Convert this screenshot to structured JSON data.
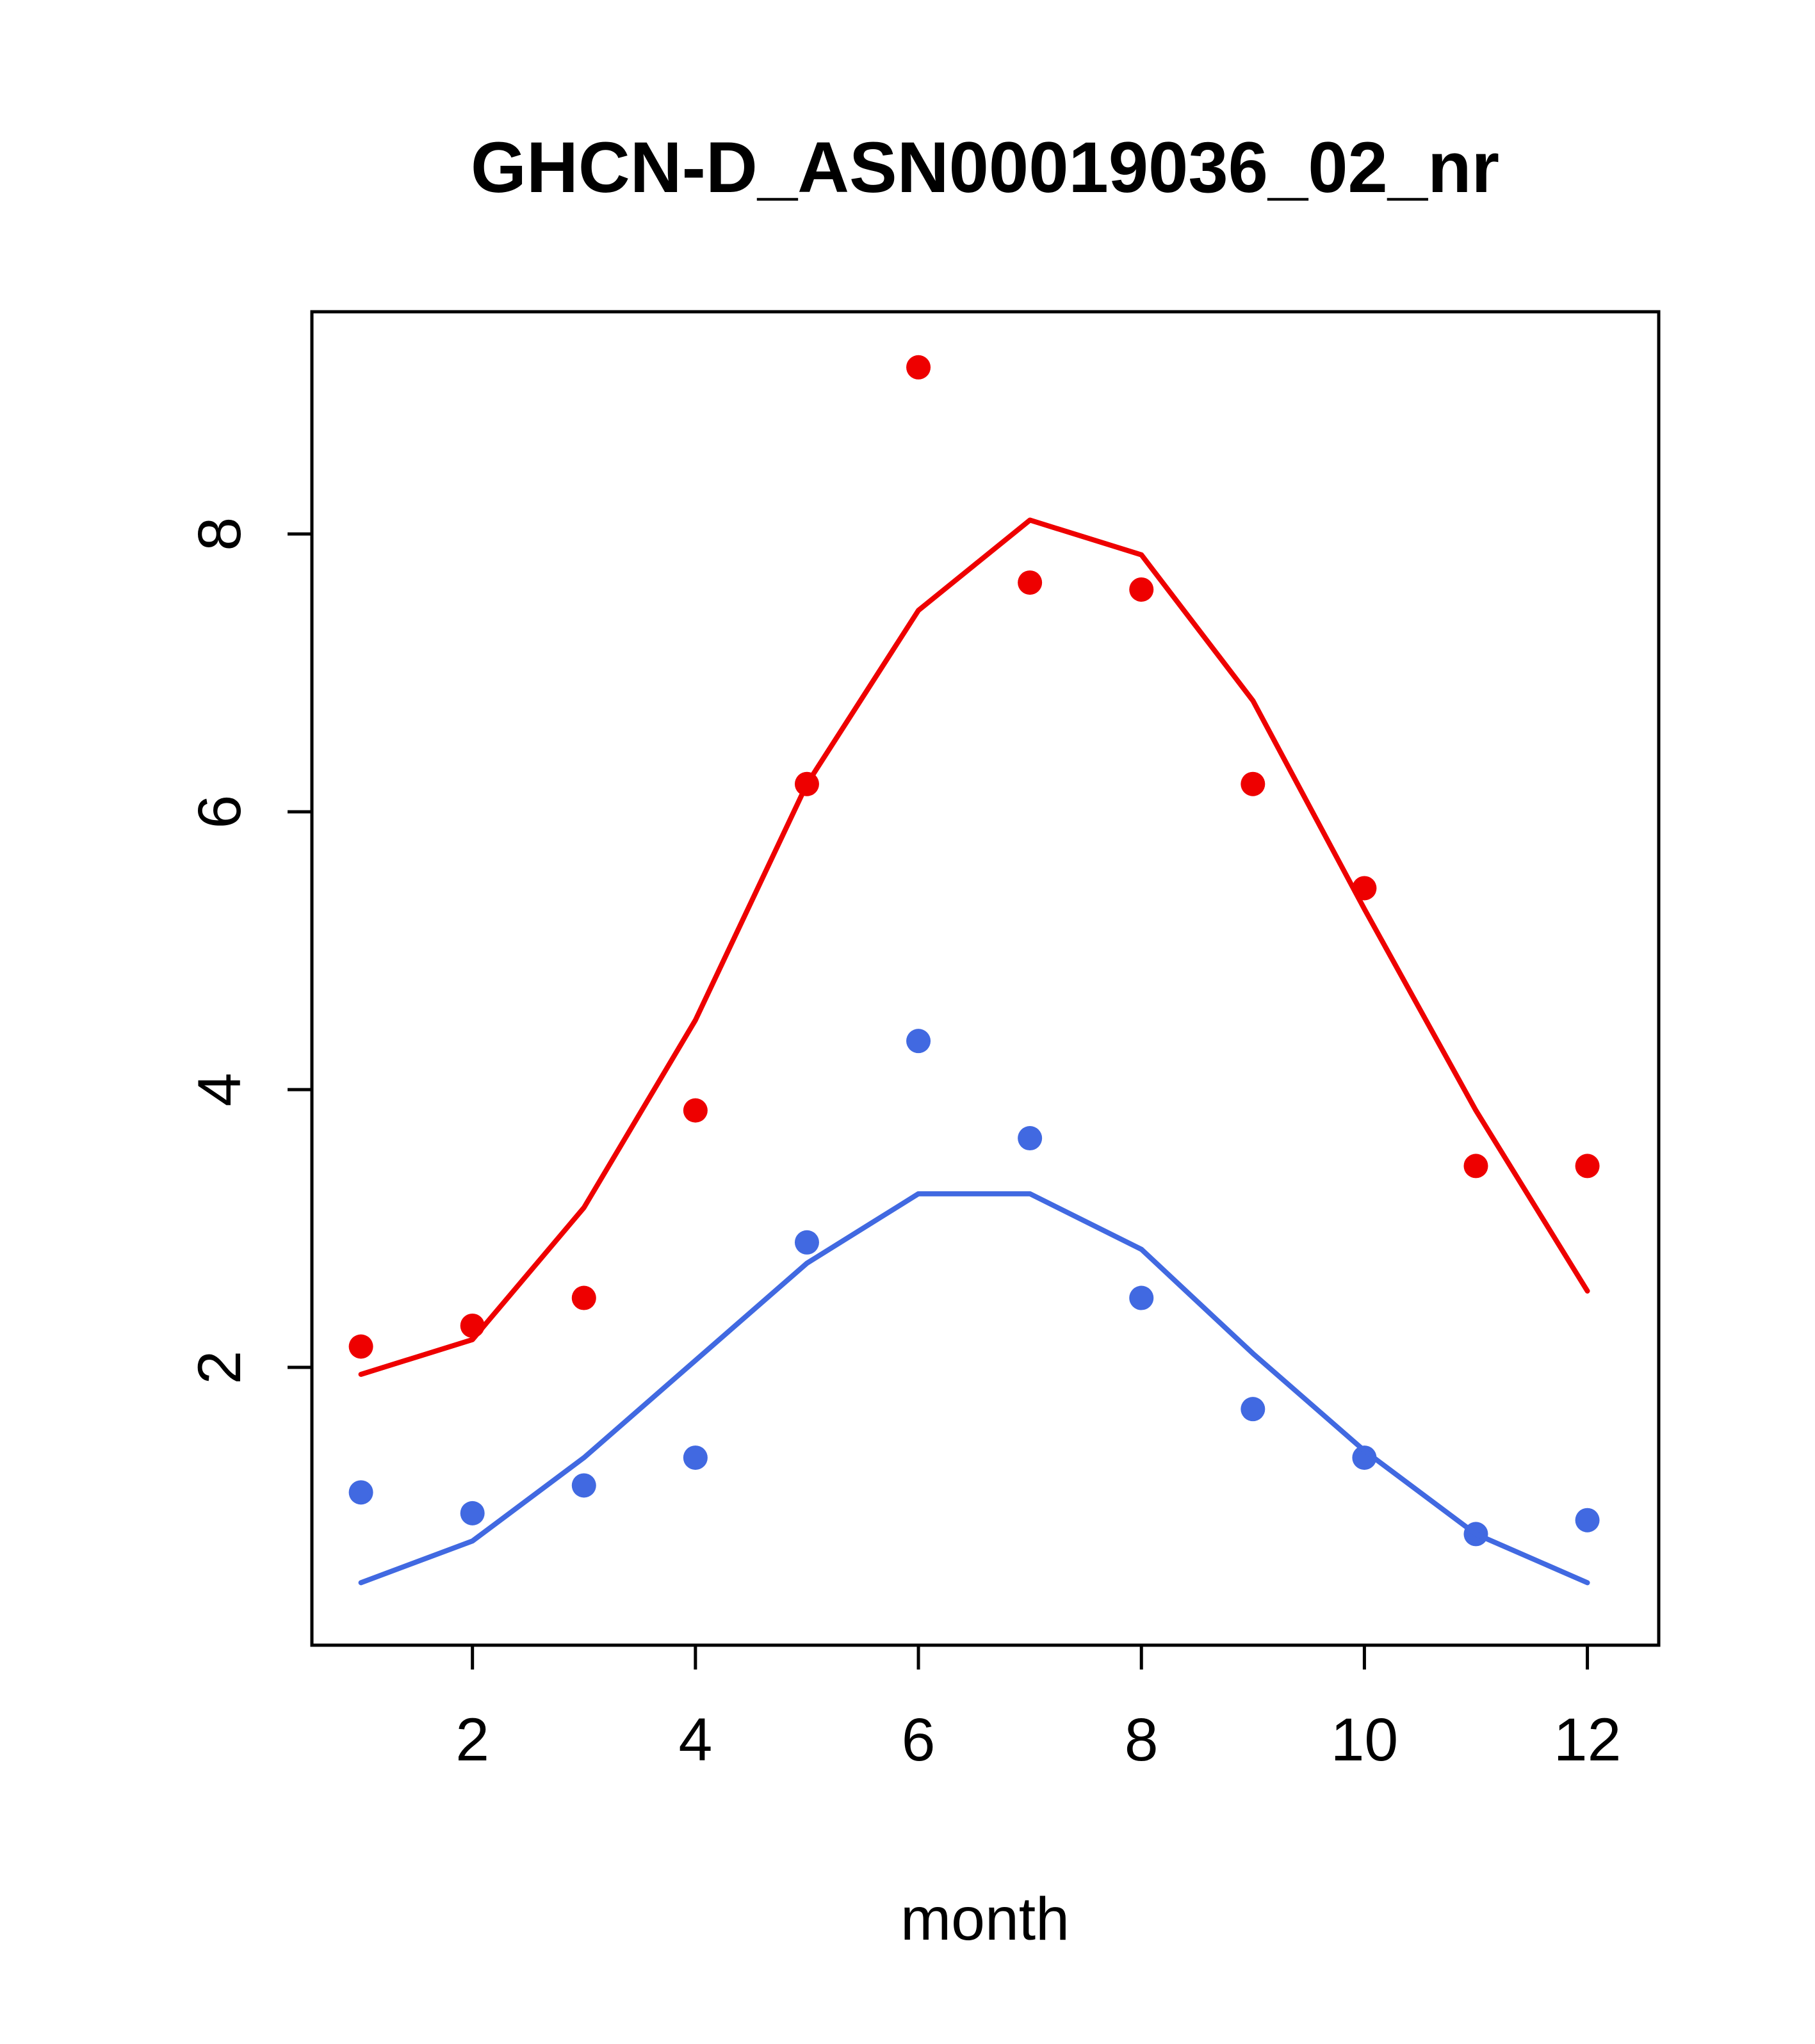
{
  "title": "GHCN-D_ASN00019036_02_nr",
  "xlabel": "month",
  "colors": {
    "series_red": "#ee0000",
    "series_blue": "#4169e1",
    "axis": "#000000"
  },
  "chart_data": {
    "type": "scatter",
    "title": "GHCN-D_ASN00019036_02_nr",
    "xlabel": "month",
    "ylabel": "",
    "x": [
      1,
      2,
      3,
      4,
      5,
      6,
      7,
      8,
      9,
      10,
      11,
      12
    ],
    "series": [
      {
        "name": "red-points",
        "kind": "points",
        "color": "#ee0000",
        "values": [
          2.15,
          2.3,
          2.5,
          3.85,
          6.2,
          9.2,
          7.65,
          7.6,
          6.2,
          5.45,
          3.45,
          3.45
        ]
      },
      {
        "name": "red-line",
        "kind": "line",
        "color": "#ee0000",
        "values": [
          1.95,
          2.2,
          3.15,
          4.5,
          6.2,
          7.45,
          8.1,
          7.85,
          6.8,
          5.3,
          3.85,
          2.55
        ]
      },
      {
        "name": "blue-points",
        "kind": "points",
        "color": "#4169e1",
        "values": [
          1.1,
          0.95,
          1.15,
          1.35,
          2.9,
          4.35,
          3.65,
          2.5,
          1.7,
          1.35,
          0.8,
          0.9
        ]
      },
      {
        "name": "blue-line",
        "kind": "line",
        "color": "#4169e1",
        "values": [
          0.45,
          0.75,
          1.35,
          2.05,
          2.75,
          3.25,
          3.25,
          2.85,
          2.1,
          1.4,
          0.8,
          0.45
        ]
      }
    ],
    "xticks": [
      2,
      4,
      6,
      8,
      10,
      12
    ],
    "yticks": [
      2,
      4,
      6,
      8
    ],
    "xlim": [
      0.56,
      12.64
    ],
    "ylim": [
      0.0,
      9.6
    ],
    "grid": false,
    "legend": "none"
  }
}
